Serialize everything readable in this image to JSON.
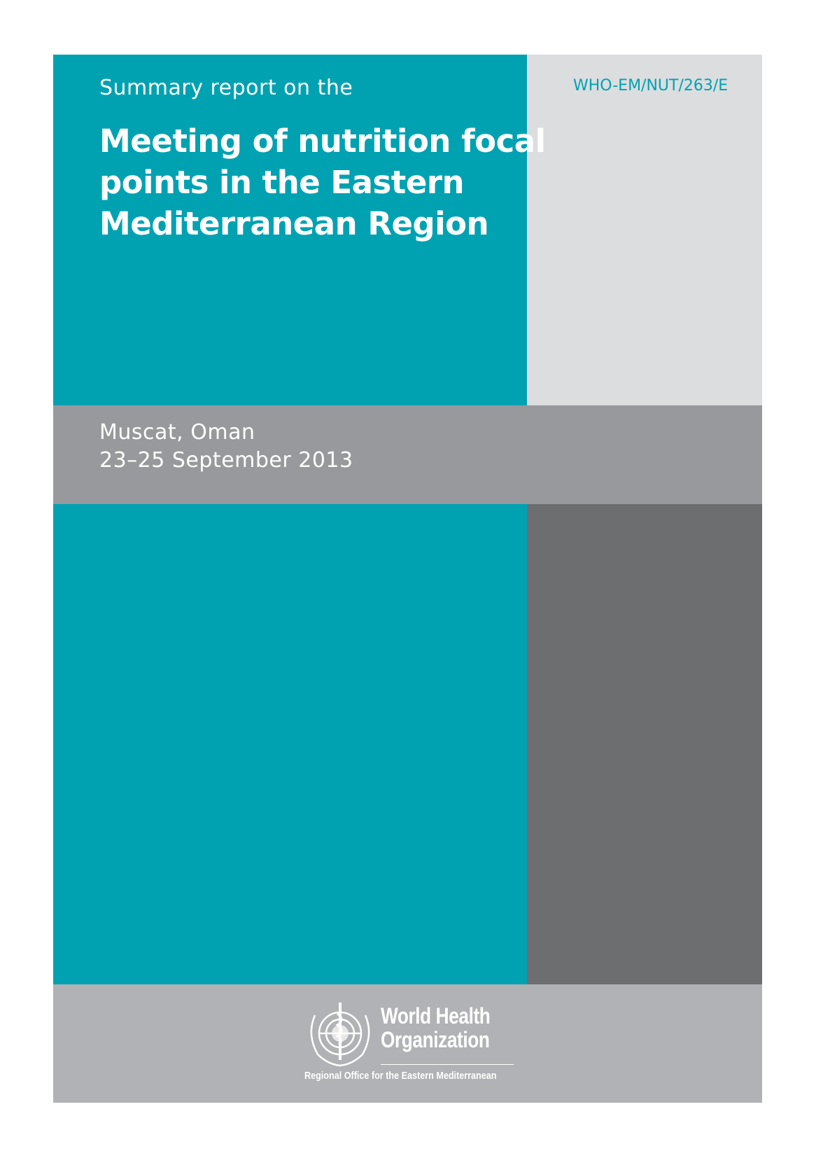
{
  "cover": {
    "subtitle": "Summary report on the",
    "title_lines": [
      "Meeting of nutrition focal",
      "points in the Eastern",
      "Mediterranean Region"
    ],
    "document_code": "WHO-EM/NUT/263/E",
    "location": "Muscat, Oman",
    "dates": "23–25 September 2013"
  },
  "logo": {
    "line1": "World Health",
    "line2": "Organization",
    "office": "Regional Office for the Eastern Mediterranean",
    "icon": "who-emblem-icon"
  },
  "colors": {
    "teal": "#00a2b2",
    "light_grey": "#dcdddf",
    "mid_grey": "#98999c",
    "dark_grey": "#6d6e70",
    "footer_grey": "#b1b2b5"
  }
}
